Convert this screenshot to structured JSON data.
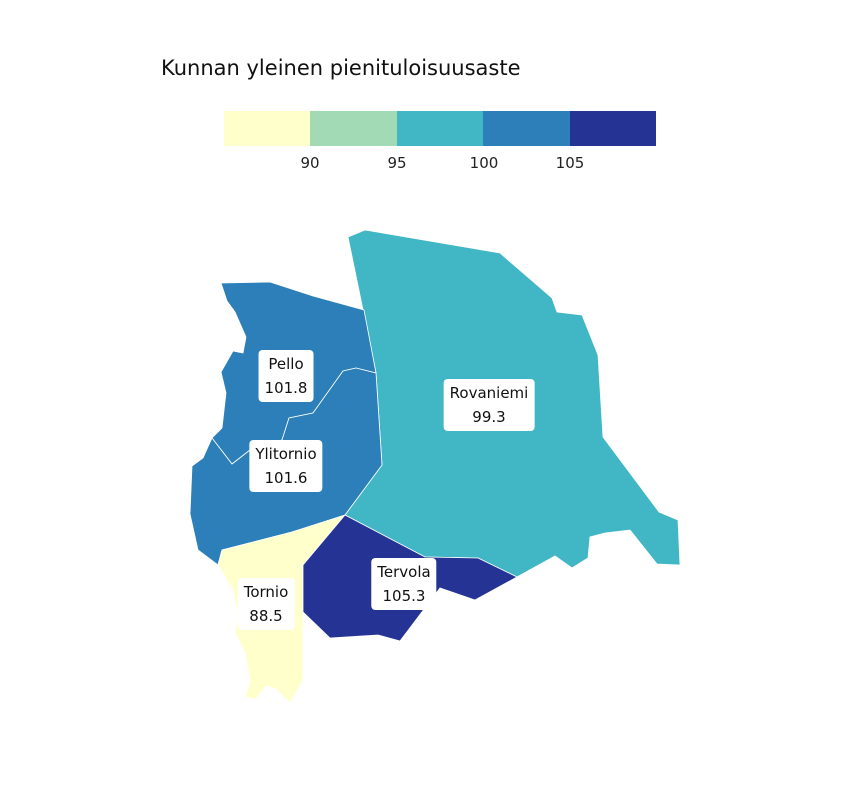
{
  "title": "Kunnan yleinen pienituloisuusaste",
  "legend": {
    "colors": [
      "#ffffcc",
      "#a1dab4",
      "#41b6c4",
      "#2c7fb8",
      "#253494"
    ],
    "ticks": [
      "90",
      "95",
      "100",
      "105"
    ]
  },
  "municipalities": [
    {
      "name": "Pello",
      "value": "101.8",
      "color": "#2c7fb8"
    },
    {
      "name": "Ylitornio",
      "value": "101.6",
      "color": "#2c7fb8"
    },
    {
      "name": "Rovaniemi",
      "value": "99.3",
      "color": "#41b6c4"
    },
    {
      "name": "Tervola",
      "value": "105.3",
      "color": "#253494"
    },
    {
      "name": "Tornio",
      "value": "88.5",
      "color": "#ffffcc"
    }
  ],
  "chart_data": {
    "type": "choropleth",
    "title": "Kunnan yleinen pienituloisuusaste",
    "legend_breaks": [
      90,
      95,
      100,
      105
    ],
    "regions": [
      "Pello",
      "Ylitornio",
      "Rovaniemi",
      "Tervola",
      "Tornio"
    ],
    "values": [
      101.8,
      101.6,
      99.3,
      105.3,
      88.5
    ]
  }
}
